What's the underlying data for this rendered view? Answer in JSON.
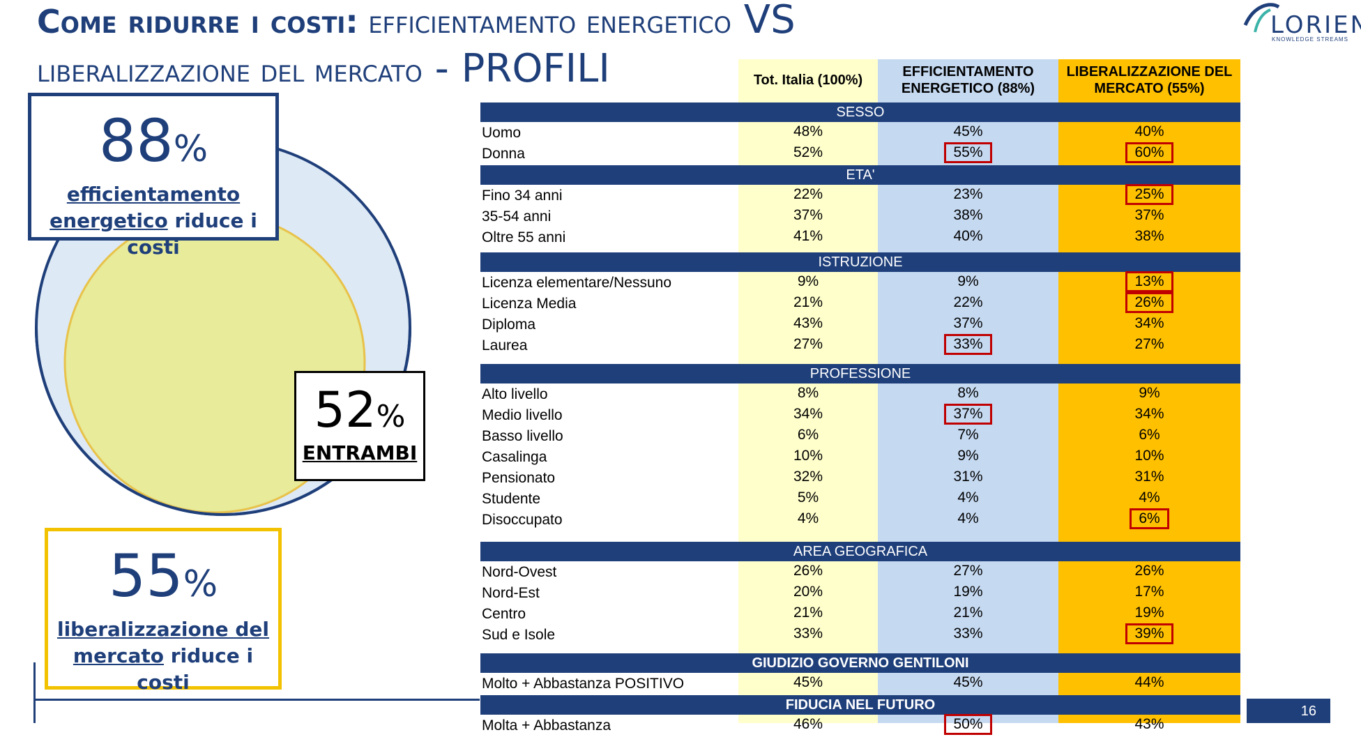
{
  "title": {
    "part1_bold": "Come ridurre i costi:",
    "part1_rest": " efficientamento energetico",
    "vs": " VS",
    "part2": "liberalizzazione del mercato",
    "dash": " - ",
    "profili": "PROFILI"
  },
  "logo": {
    "word": "LORIEN",
    "tagline": "KNOWLEDGE STREAMS"
  },
  "stats": {
    "energy": {
      "pct": "88",
      "pct_sign": "%",
      "cap_u1": "efficientamento",
      "cap_u2": "energetico",
      "cap_rest": " riduce i costi"
    },
    "market": {
      "pct": "55",
      "pct_sign": "%",
      "cap_u1": "liberalizzazione del",
      "cap_u2": "mercato",
      "cap_rest": " riduce i costi"
    },
    "both": {
      "pct": "52",
      "pct_sign": "%",
      "label": "ENTRAMBI"
    }
  },
  "table": {
    "headers": {
      "tot": "Tot. Italia (100%)",
      "eff": "EFFICIENTAMENTO ENERGETICO (88%)",
      "lib": "LIBERALIZZAZIONE DEL MERCATO (55%)"
    },
    "sections": [
      {
        "title": "SESSO",
        "rows": [
          {
            "label": "Uomo",
            "tot": "48%",
            "eff": "45%",
            "lib": "40%",
            "hl_eff": false,
            "hl_lib": false
          },
          {
            "label": "Donna",
            "tot": "52%",
            "eff": "55%",
            "lib": "60%",
            "hl_eff": true,
            "hl_lib": true
          }
        ]
      },
      {
        "title": "ETA'",
        "rows": [
          {
            "label": "Fino 34 anni",
            "tot": "22%",
            "eff": "23%",
            "lib": "25%",
            "hl_eff": false,
            "hl_lib": true
          },
          {
            "label": "35-54 anni",
            "tot": "37%",
            "eff": "38%",
            "lib": "37%",
            "hl_eff": false,
            "hl_lib": false
          },
          {
            "label": "Oltre 55 anni",
            "tot": "41%",
            "eff": "40%",
            "lib": "38%",
            "hl_eff": false,
            "hl_lib": false
          }
        ]
      },
      {
        "title": "ISTRUZIONE",
        "rows": [
          {
            "label": "Licenza elementare/Nessuno",
            "tot": "9%",
            "eff": "9%",
            "lib": "13%",
            "hl_eff": false,
            "hl_lib": true
          },
          {
            "label": "Licenza Media",
            "tot": "21%",
            "eff": "22%",
            "lib": "26%",
            "hl_eff": false,
            "hl_lib": true
          },
          {
            "label": "Diploma",
            "tot": "43%",
            "eff": "37%",
            "lib": "34%",
            "hl_eff": false,
            "hl_lib": false
          },
          {
            "label": "Laurea",
            "tot": "27%",
            "eff": "33%",
            "lib": "27%",
            "hl_eff": true,
            "hl_lib": false
          }
        ]
      },
      {
        "title": "PROFESSIONE",
        "rows": [
          {
            "label": "Alto livello",
            "tot": "8%",
            "eff": "8%",
            "lib": "9%",
            "hl_eff": false,
            "hl_lib": false
          },
          {
            "label": "Medio livello",
            "tot": "34%",
            "eff": "37%",
            "lib": "34%",
            "hl_eff": true,
            "hl_lib": false
          },
          {
            "label": "Basso livello",
            "tot": "6%",
            "eff": "7%",
            "lib": "6%",
            "hl_eff": false,
            "hl_lib": false
          },
          {
            "label": "Casalinga",
            "tot": "10%",
            "eff": "9%",
            "lib": "10%",
            "hl_eff": false,
            "hl_lib": false
          },
          {
            "label": "Pensionato",
            "tot": "32%",
            "eff": "31%",
            "lib": "31%",
            "hl_eff": false,
            "hl_lib": false
          },
          {
            "label": "Studente",
            "tot": "5%",
            "eff": "4%",
            "lib": "4%",
            "hl_eff": false,
            "hl_lib": false
          },
          {
            "label": "Disoccupato",
            "tot": "4%",
            "eff": "4%",
            "lib": "6%",
            "hl_eff": false,
            "hl_lib": true
          }
        ]
      },
      {
        "title": "AREA GEOGRAFICA",
        "rows": [
          {
            "label": "Nord-Ovest",
            "tot": "26%",
            "eff": "27%",
            "lib": "26%",
            "hl_eff": false,
            "hl_lib": false
          },
          {
            "label": "Nord-Est",
            "tot": "20%",
            "eff": "19%",
            "lib": "17%",
            "hl_eff": false,
            "hl_lib": false
          },
          {
            "label": "Centro",
            "tot": "21%",
            "eff": "21%",
            "lib": "19%",
            "hl_eff": false,
            "hl_lib": false
          },
          {
            "label": "Sud e Isole",
            "tot": "33%",
            "eff": "33%",
            "lib": "39%",
            "hl_eff": false,
            "hl_lib": true
          }
        ]
      },
      {
        "title": "GIUDIZIO GOVERNO GENTILONI",
        "bold": true,
        "rows": [
          {
            "label": "Molto + Abbastanza POSITIVO",
            "tot": "45%",
            "eff": "45%",
            "lib": "44%",
            "hl_eff": false,
            "hl_lib": false
          }
        ]
      },
      {
        "title": "FIDUCIA NEL FUTURO",
        "bold": true,
        "rows": [
          {
            "label": "Molta + Abbastanza",
            "tot": "46%",
            "eff": "50%",
            "lib": "43%",
            "hl_eff": true,
            "hl_lib": false
          }
        ]
      }
    ]
  },
  "page_number": "16",
  "colors": {
    "navy": "#1f3f7a",
    "yellow_light": "#ffffcc",
    "blue_light": "#c5d9f1",
    "orange": "#ffc000",
    "highlight": "#c00000"
  }
}
